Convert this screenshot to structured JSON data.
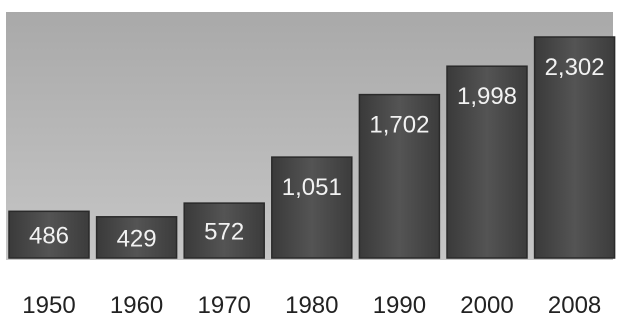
{
  "chart_data": {
    "type": "bar",
    "categories": [
      "1950",
      "1960",
      "1970",
      "1980",
      "1990",
      "2000",
      "2008"
    ],
    "values": [
      486,
      429,
      572,
      1051,
      1702,
      1998,
      2302
    ],
    "value_labels": [
      "486",
      "429",
      "572",
      "1,051",
      "1,702",
      "1,998",
      "2,302"
    ],
    "title": "",
    "xlabel": "",
    "ylabel": "",
    "ylim": [
      0,
      2500
    ],
    "grid": false,
    "legend": "none",
    "colors": {
      "plot_bg": "#b9b9b9",
      "bar": "#4a4a4a",
      "bar_edge": "#2a2a2a",
      "value_text": "#f2f2f2",
      "axis_text": "#222222",
      "page_bg": "#ffffff"
    }
  }
}
